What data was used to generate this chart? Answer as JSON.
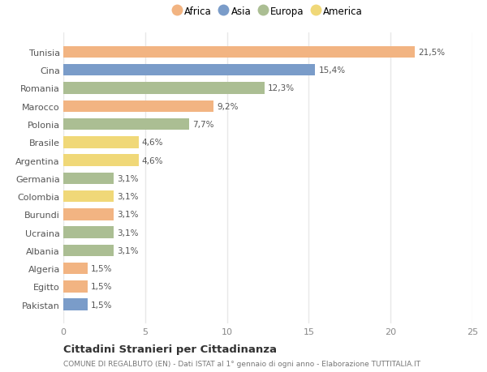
{
  "countries": [
    "Tunisia",
    "Cina",
    "Romania",
    "Marocco",
    "Polonia",
    "Brasile",
    "Argentina",
    "Germania",
    "Colombia",
    "Burundi",
    "Ucraina",
    "Albania",
    "Algeria",
    "Egitto",
    "Pakistan"
  ],
  "values": [
    21.5,
    15.4,
    12.3,
    9.2,
    7.7,
    4.6,
    4.6,
    3.1,
    3.1,
    3.1,
    3.1,
    3.1,
    1.5,
    1.5,
    1.5
  ],
  "labels": [
    "21,5%",
    "15,4%",
    "12,3%",
    "9,2%",
    "7,7%",
    "4,6%",
    "4,6%",
    "3,1%",
    "3,1%",
    "3,1%",
    "3,1%",
    "3,1%",
    "1,5%",
    "1,5%",
    "1,5%"
  ],
  "continents": [
    "Africa",
    "Asia",
    "Europa",
    "Africa",
    "Europa",
    "America",
    "America",
    "Europa",
    "America",
    "Africa",
    "Europa",
    "Europa",
    "Africa",
    "Africa",
    "Asia"
  ],
  "colors": {
    "Africa": "#F2B482",
    "Asia": "#7A9CC9",
    "Europa": "#ABBE93",
    "America": "#F0D878"
  },
  "legend_order": [
    "Africa",
    "Asia",
    "Europa",
    "America"
  ],
  "xlim": [
    0,
    25
  ],
  "xticks": [
    0,
    5,
    10,
    15,
    20,
    25
  ],
  "title": "Cittadini Stranieri per Cittadinanza",
  "subtitle": "COMUNE DI REGALBUTO (EN) - Dati ISTAT al 1° gennaio di ogni anno - Elaborazione TUTTITALIA.IT",
  "bg_color": "#ffffff",
  "grid_color": "#e8e8e8"
}
